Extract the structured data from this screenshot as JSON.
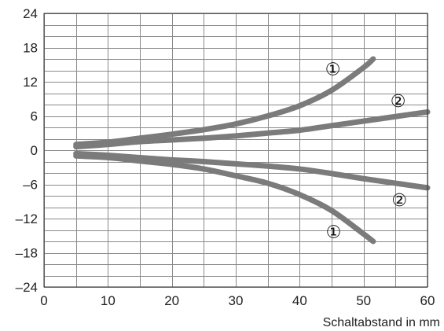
{
  "chart_data": {
    "type": "line",
    "title": "",
    "xlabel": "Schaltabstand in mm",
    "ylabel": "",
    "xlim": [
      0,
      60
    ],
    "ylim": [
      -24,
      24
    ],
    "grid": true,
    "line_color": "#7b7b7b",
    "x_ticks": [
      0,
      10,
      20,
      30,
      40,
      50,
      60
    ],
    "x_tick_labels": [
      "0",
      "10",
      "20",
      "30",
      "40",
      "50",
      "60"
    ],
    "x_minor_step": 5,
    "y_ticks": [
      -24,
      -18,
      -12,
      -6,
      0,
      6,
      12,
      18,
      24
    ],
    "y_tick_labels": [
      "–24",
      "–18",
      "–12",
      "–6",
      "0",
      "6",
      "12",
      "18",
      "24"
    ],
    "y_minor_step": 2,
    "series": [
      {
        "id": "curve-1-upper",
        "points": [
          [
            5,
            1
          ],
          [
            10,
            1.4
          ],
          [
            15,
            2.1
          ],
          [
            20,
            2.8
          ],
          [
            25,
            3.6
          ],
          [
            30,
            4.6
          ],
          [
            35,
            6.0
          ],
          [
            40,
            7.8
          ],
          [
            45,
            10.5
          ],
          [
            50,
            14.5
          ],
          [
            51.5,
            16
          ]
        ]
      },
      {
        "id": "curve-1-lower",
        "points": [
          [
            5,
            -1
          ],
          [
            10,
            -1.3
          ],
          [
            15,
            -1.9
          ],
          [
            20,
            -2.5
          ],
          [
            25,
            -3.3
          ],
          [
            30,
            -4.5
          ],
          [
            35,
            -5.8
          ],
          [
            40,
            -7.8
          ],
          [
            45,
            -10.6
          ],
          [
            50,
            -14.7
          ],
          [
            51.5,
            -16
          ]
        ]
      },
      {
        "id": "curve-2-upper",
        "points": [
          [
            5,
            0.6
          ],
          [
            10,
            1.0
          ],
          [
            15,
            1.5
          ],
          [
            20,
            1.8
          ],
          [
            25,
            2.1
          ],
          [
            30,
            2.5
          ],
          [
            35,
            3.0
          ],
          [
            40,
            3.5
          ],
          [
            45,
            4.3
          ],
          [
            50,
            5.1
          ],
          [
            55,
            5.9
          ],
          [
            60,
            6.7
          ]
        ]
      },
      {
        "id": "curve-2-lower",
        "points": [
          [
            5,
            -0.6
          ],
          [
            10,
            -0.9
          ],
          [
            15,
            -1.3
          ],
          [
            20,
            -1.7
          ],
          [
            25,
            -2.0
          ],
          [
            30,
            -2.4
          ],
          [
            35,
            -2.8
          ],
          [
            40,
            -3.3
          ],
          [
            45,
            -4.1
          ],
          [
            50,
            -5.0
          ],
          [
            55,
            -5.8
          ],
          [
            60,
            -6.6
          ]
        ]
      }
    ],
    "annotations": [
      {
        "id": "label-1-upper",
        "text": "①",
        "x": 45.2,
        "y": 14.3
      },
      {
        "id": "label-2-upper",
        "text": "②",
        "x": 55.4,
        "y": 8.7
      },
      {
        "id": "label-2-lower",
        "text": "②",
        "x": 55.6,
        "y": -8.7
      },
      {
        "id": "label-1-lower",
        "text": "①",
        "x": 45.3,
        "y": -14.3
      }
    ]
  }
}
